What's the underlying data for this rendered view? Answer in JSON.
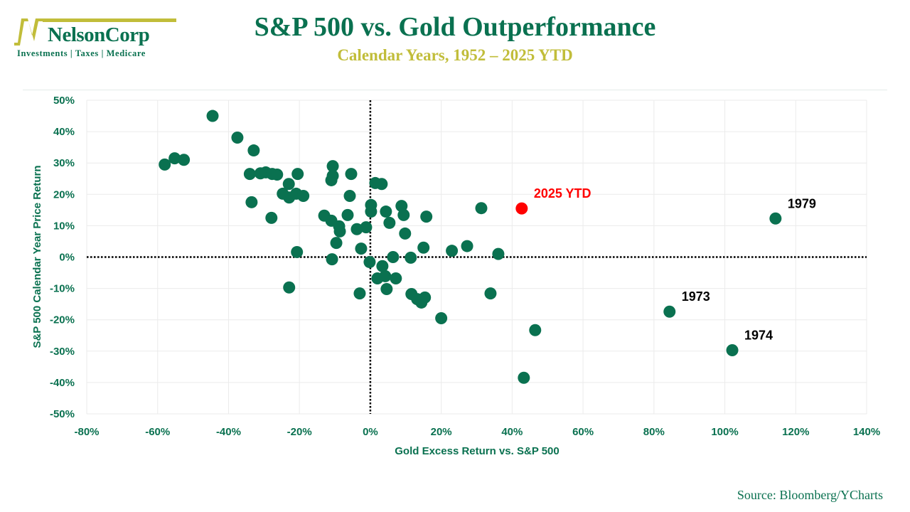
{
  "logo": {
    "name": "NelsonCorp",
    "tagline": "Investments | Taxes | Medicare",
    "colors": {
      "green": "#0a7150",
      "gold": "#c1bd3a"
    }
  },
  "header": {
    "title": "S&P 500 vs. Gold Outperformance",
    "subtitle": "Calendar Years, 1952 – 2025 YTD"
  },
  "footer": {
    "source": "Source: Bloomberg/YCharts"
  },
  "colors": {
    "point": "#0a7150",
    "highlight": "#ff0000",
    "text": "#0a7150",
    "annotation": "#000000"
  },
  "chart_data": {
    "type": "scatter",
    "title": "S&P 500 vs. Gold Outperformance",
    "subtitle": "Calendar Years, 1952 – 2025 YTD",
    "xlabel": "Gold Excess Return vs. S&P 500",
    "ylabel": "S&P 500 Calendar Year Price Return",
    "xlim": [
      -80,
      140
    ],
    "ylim": [
      -50,
      50
    ],
    "x_ticks": [
      -80,
      -60,
      -40,
      -20,
      0,
      20,
      40,
      60,
      80,
      100,
      120,
      140
    ],
    "y_ticks": [
      50,
      40,
      30,
      20,
      10,
      0,
      -10,
      -20,
      -30,
      -40,
      -50
    ],
    "x_tick_labels": [
      "-80%",
      "-60%",
      "-40%",
      "-20%",
      "0%",
      "20%",
      "40%",
      "60%",
      "80%",
      "100%",
      "120%",
      "140%"
    ],
    "y_tick_labels": [
      "50%",
      "40%",
      "30%",
      "20%",
      "10%",
      "0%",
      "-10%",
      "-20%",
      "-30%",
      "-40%",
      "-50%"
    ],
    "grid": true,
    "reference_lines": {
      "x": 0,
      "y": 0,
      "style": "dotted"
    },
    "series": [
      {
        "name": "Calendar years",
        "color": "#0a7150",
        "points": [
          [
            -58.0,
            29.5
          ],
          [
            -55.2,
            31.5
          ],
          [
            -52.6,
            31.0
          ],
          [
            -44.5,
            45.0
          ],
          [
            -37.5,
            38.1
          ],
          [
            -32.9,
            34.0
          ],
          [
            -34.0,
            26.5
          ],
          [
            -31.0,
            26.7
          ],
          [
            -29.5,
            27.0
          ],
          [
            -27.7,
            26.5
          ],
          [
            -26.3,
            26.3
          ],
          [
            -20.5,
            26.5
          ],
          [
            -23.0,
            23.3
          ],
          [
            -24.7,
            20.2
          ],
          [
            -22.9,
            19.0
          ],
          [
            -20.9,
            20.2
          ],
          [
            -18.9,
            19.5
          ],
          [
            -33.5,
            17.5
          ],
          [
            -27.9,
            12.5
          ],
          [
            -20.7,
            1.6
          ],
          [
            -22.9,
            -9.7
          ],
          [
            -10.6,
            29.0
          ],
          [
            -10.6,
            25.9
          ],
          [
            -11.0,
            24.5
          ],
          [
            -5.4,
            26.5
          ],
          [
            1.4,
            23.6
          ],
          [
            3.2,
            23.3
          ],
          [
            -5.8,
            19.5
          ],
          [
            0.2,
            16.6
          ],
          [
            0.2,
            14.5
          ],
          [
            4.4,
            14.5
          ],
          [
            8.8,
            16.3
          ],
          [
            9.4,
            13.4
          ],
          [
            -6.4,
            13.4
          ],
          [
            -13.0,
            13.2
          ],
          [
            -11.0,
            11.6
          ],
          [
            -8.8,
            9.8
          ],
          [
            -8.6,
            8.2
          ],
          [
            -3.8,
            8.9
          ],
          [
            -1.2,
            9.5
          ],
          [
            5.4,
            10.9
          ],
          [
            9.8,
            7.5
          ],
          [
            -9.6,
            4.5
          ],
          [
            -2.6,
            2.7
          ],
          [
            -10.8,
            -0.7
          ],
          [
            -0.2,
            -1.6
          ],
          [
            6.4,
            0.0
          ],
          [
            3.4,
            -2.9
          ],
          [
            2.0,
            -6.8
          ],
          [
            4.2,
            -6.1
          ],
          [
            7.2,
            -6.8
          ],
          [
            4.6,
            -10.2
          ],
          [
            -3.0,
            -11.6
          ],
          [
            11.6,
            -11.8
          ],
          [
            13.2,
            -13.4
          ],
          [
            14.4,
            -14.5
          ],
          [
            15.4,
            -12.9
          ],
          [
            20.0,
            -19.5
          ],
          [
            15.8,
            12.9
          ],
          [
            31.3,
            15.6
          ],
          [
            15.0,
            3.0
          ],
          [
            11.4,
            -0.2
          ],
          [
            23.0,
            2.0
          ],
          [
            27.3,
            3.5
          ],
          [
            36.1,
            1.0
          ],
          [
            33.9,
            -11.6
          ],
          [
            46.5,
            -23.3
          ],
          [
            43.3,
            -38.5
          ],
          [
            84.4,
            -17.4
          ],
          [
            102.1,
            -29.7
          ],
          [
            114.3,
            12.3
          ]
        ]
      },
      {
        "name": "2025 YTD",
        "color": "#ff0000",
        "points": [
          [
            42.7,
            15.5
          ]
        ]
      }
    ],
    "annotations": [
      {
        "text": "2025 YTD",
        "x": 42.7,
        "y": 15.5,
        "color": "#ff0000"
      },
      {
        "text": "1979",
        "x": 114.3,
        "y": 12.3,
        "color": "#000000"
      },
      {
        "text": "1973",
        "x": 84.4,
        "y": -17.4,
        "color": "#000000"
      },
      {
        "text": "1974",
        "x": 102.1,
        "y": -29.7,
        "color": "#000000"
      }
    ]
  }
}
